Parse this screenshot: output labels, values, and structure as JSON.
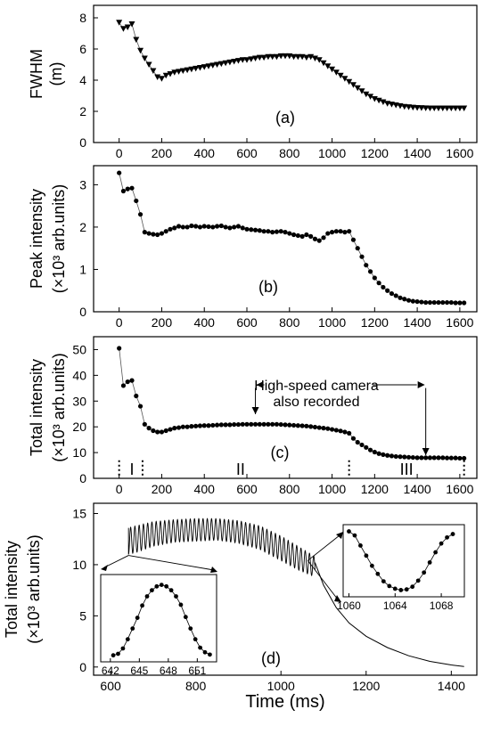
{
  "chart_data": [
    {
      "panel": "(a)",
      "type": "scatter",
      "ylabel": "FWHM\n(m)",
      "xlim": [
        -120,
        1680
      ],
      "ylim": [
        0,
        8.8
      ],
      "xticks": [
        0,
        200,
        400,
        600,
        800,
        1000,
        1200,
        1400,
        1600
      ],
      "yticks": [
        0,
        2,
        4,
        6,
        8
      ],
      "marker": "triangle-down",
      "series": [
        {
          "x": [
            0,
            20,
            40,
            60,
            80,
            100,
            120,
            140,
            160,
            180,
            200,
            220,
            240,
            260,
            280,
            300,
            320,
            340,
            360,
            380,
            400,
            420,
            440,
            460,
            480,
            500,
            520,
            540,
            560,
            580,
            600,
            620,
            640,
            660,
            680,
            700,
            720,
            740,
            760,
            780,
            800,
            820,
            840,
            860,
            880,
            900,
            920,
            940,
            960,
            980,
            1000,
            1020,
            1040,
            1060,
            1080,
            1100,
            1120,
            1140,
            1160,
            1180,
            1200,
            1220,
            1240,
            1260,
            1280,
            1300,
            1320,
            1340,
            1360,
            1380,
            1400,
            1420,
            1440,
            1460,
            1480,
            1500,
            1520,
            1540,
            1560,
            1580,
            1600,
            1620
          ],
          "y": [
            7.7,
            7.3,
            7.4,
            7.6,
            6.6,
            5.9,
            5.4,
            5.0,
            4.6,
            4.2,
            4.1,
            4.3,
            4.4,
            4.5,
            4.55,
            4.6,
            4.65,
            4.7,
            4.75,
            4.8,
            4.85,
            4.9,
            4.95,
            5.0,
            5.05,
            5.1,
            5.15,
            5.2,
            5.25,
            5.3,
            5.3,
            5.35,
            5.4,
            5.45,
            5.45,
            5.5,
            5.5,
            5.5,
            5.55,
            5.55,
            5.55,
            5.5,
            5.5,
            5.5,
            5.45,
            5.5,
            5.4,
            5.3,
            5.1,
            4.9,
            4.7,
            4.5,
            4.3,
            4.1,
            3.9,
            3.7,
            3.5,
            3.3,
            3.1,
            2.95,
            2.8,
            2.7,
            2.6,
            2.5,
            2.45,
            2.4,
            2.35,
            2.3,
            2.28,
            2.25,
            2.23,
            2.22,
            2.21,
            2.2,
            2.2,
            2.2,
            2.2,
            2.2,
            2.2,
            2.2,
            2.2,
            2.2
          ]
        }
      ]
    },
    {
      "panel": "(b)",
      "type": "scatter",
      "ylabel": "Peak intensity\n(×10³ arb.units)",
      "xlim": [
        -120,
        1680
      ],
      "ylim": [
        0,
        3.45
      ],
      "xticks": [
        0,
        200,
        400,
        600,
        800,
        1000,
        1200,
        1400,
        1600
      ],
      "yticks": [
        0,
        1,
        2,
        3
      ],
      "marker": "circle",
      "series": [
        {
          "x": [
            0,
            20,
            40,
            60,
            80,
            100,
            120,
            140,
            160,
            180,
            200,
            220,
            240,
            260,
            280,
            300,
            320,
            340,
            360,
            380,
            400,
            420,
            440,
            460,
            480,
            500,
            520,
            540,
            560,
            580,
            600,
            620,
            640,
            660,
            680,
            700,
            720,
            740,
            760,
            780,
            800,
            820,
            840,
            860,
            880,
            900,
            920,
            940,
            960,
            980,
            1000,
            1020,
            1040,
            1060,
            1080,
            1100,
            1120,
            1140,
            1160,
            1180,
            1200,
            1220,
            1240,
            1260,
            1280,
            1300,
            1320,
            1340,
            1360,
            1380,
            1400,
            1420,
            1440,
            1460,
            1480,
            1500,
            1520,
            1540,
            1560,
            1580,
            1600,
            1620
          ],
          "y": [
            3.28,
            2.85,
            2.9,
            2.92,
            2.62,
            2.3,
            1.88,
            1.85,
            1.83,
            1.82,
            1.85,
            1.9,
            1.95,
            1.98,
            2.02,
            2.0,
            2.0,
            2.03,
            2.02,
            2.0,
            2.02,
            2.01,
            2.0,
            2.02,
            2.03,
            2.0,
            1.98,
            2.0,
            2.02,
            1.98,
            1.95,
            1.94,
            1.93,
            1.92,
            1.9,
            1.9,
            1.88,
            1.89,
            1.9,
            1.88,
            1.85,
            1.82,
            1.8,
            1.78,
            1.82,
            1.78,
            1.72,
            1.68,
            1.75,
            1.85,
            1.88,
            1.9,
            1.9,
            1.88,
            1.9,
            1.7,
            1.5,
            1.3,
            1.1,
            0.95,
            0.8,
            0.68,
            0.58,
            0.5,
            0.43,
            0.38,
            0.33,
            0.3,
            0.27,
            0.25,
            0.24,
            0.23,
            0.22,
            0.22,
            0.22,
            0.22,
            0.22,
            0.22,
            0.22,
            0.21,
            0.21,
            0.21
          ]
        }
      ]
    },
    {
      "panel": "(c)",
      "type": "scatter",
      "ylabel": "Total intensity\n(×10³ arb.units)",
      "xlim": [
        -120,
        1680
      ],
      "ylim": [
        0,
        55
      ],
      "xticks": [
        0,
        200,
        400,
        600,
        800,
        1000,
        1200,
        1400,
        1600
      ],
      "yticks": [
        0,
        10,
        20,
        30,
        40,
        50
      ],
      "marker": "circle",
      "annotation": "High-speed camera\nalso recorded",
      "camera_range": [
        640,
        1440
      ],
      "region_labels": [
        {
          "label": "I",
          "x": 60
        },
        {
          "label": "II",
          "x": 570
        },
        {
          "label": "III",
          "x": 1350
        }
      ],
      "region_boundaries": [
        0,
        110,
        1080,
        1620
      ],
      "series": [
        {
          "x": [
            0,
            20,
            40,
            60,
            80,
            100,
            120,
            140,
            160,
            180,
            200,
            220,
            240,
            260,
            280,
            300,
            320,
            340,
            360,
            380,
            400,
            420,
            440,
            460,
            480,
            500,
            520,
            540,
            560,
            580,
            600,
            620,
            640,
            660,
            680,
            700,
            720,
            740,
            760,
            780,
            800,
            820,
            840,
            860,
            880,
            900,
            920,
            940,
            960,
            980,
            1000,
            1020,
            1040,
            1060,
            1080,
            1100,
            1120,
            1140,
            1160,
            1180,
            1200,
            1220,
            1240,
            1260,
            1280,
            1300,
            1320,
            1340,
            1360,
            1380,
            1400,
            1420,
            1440,
            1460,
            1480,
            1500,
            1520,
            1540,
            1560,
            1580,
            1600,
            1620
          ],
          "y": [
            50.5,
            36,
            37.5,
            38,
            32,
            28,
            21,
            19.5,
            18.5,
            18,
            18,
            18.5,
            19,
            19.5,
            19.7,
            20,
            20,
            20.2,
            20.3,
            20.4,
            20.5,
            20.5,
            20.6,
            20.7,
            20.8,
            20.8,
            20.8,
            20.9,
            20.9,
            21,
            21,
            21,
            21,
            21,
            21,
            21,
            21,
            21,
            20.9,
            20.8,
            20.7,
            20.6,
            20.5,
            20.4,
            20.3,
            20.1,
            19.9,
            19.7,
            19.5,
            19.3,
            19,
            18.7,
            18.4,
            18,
            17.5,
            15.5,
            14,
            13,
            12,
            11,
            10.2,
            9.6,
            9.2,
            8.9,
            8.7,
            8.5,
            8.4,
            8.3,
            8.2,
            8.1,
            8,
            8,
            8,
            8,
            8,
            8,
            8,
            7.9,
            7.9,
            7.9,
            7.8,
            7.8
          ]
        }
      ]
    },
    {
      "panel": "(d)",
      "type": "line",
      "xlabel": "Time (ms)",
      "ylabel": "Total intensity\n(×10³ arb.units)",
      "xlim": [
        560,
        1460
      ],
      "ylim": [
        -0.8,
        16
      ],
      "xticks": [
        600,
        800,
        1000,
        1200,
        1400
      ],
      "yticks": [
        0,
        5,
        10,
        15
      ],
      "oscillation": {
        "x_start": 642,
        "x_end": 1080,
        "period_ms": 10,
        "envelope": {
          "x": [
            642,
            660,
            700,
            750,
            800,
            850,
            900,
            950,
            1000,
            1040,
            1080
          ],
          "max": [
            13.6,
            13.8,
            14.2,
            14.4,
            14.5,
            14.5,
            14.3,
            13.8,
            12.8,
            11.8,
            10.8
          ],
          "min": [
            11.0,
            11.2,
            11.8,
            12.2,
            12.3,
            12.4,
            12.1,
            11.5,
            10.4,
            9.5,
            8.8
          ]
        }
      },
      "decay": {
        "x": [
          1080,
          1100,
          1130,
          1160,
          1200,
          1250,
          1300,
          1350,
          1400,
          1430
        ],
        "y": [
          10.2,
          8.0,
          5.8,
          4.3,
          3.0,
          1.9,
          1.1,
          0.55,
          0.2,
          0.05
        ]
      },
      "insets": [
        {
          "name": "left",
          "xlim": [
            641,
            653
          ],
          "xticks": [
            642,
            645,
            648,
            651
          ],
          "x": [
            642.3,
            642.8,
            643.3,
            643.8,
            644.3,
            644.8,
            645.3,
            645.8,
            646.3,
            646.8,
            647.3,
            647.8,
            648.3,
            648.8,
            649.3,
            649.8,
            650.3,
            650.8,
            651.3,
            651.8,
            652.3
          ],
          "y": [
            0.3,
            0.5,
            1.2,
            2.4,
            3.8,
            5.2,
            6.8,
            8.0,
            8.8,
            9.3,
            9.5,
            9.3,
            8.8,
            8.0,
            6.9,
            5.3,
            3.8,
            2.4,
            1.3,
            0.7,
            0.4
          ]
        },
        {
          "name": "right",
          "xlim": [
            1059.5,
            1070
          ],
          "xticks": [
            1060,
            1064,
            1068
          ],
          "x": [
            1060,
            1060.5,
            1061,
            1061.5,
            1062,
            1062.5,
            1063,
            1063.5,
            1064,
            1064.5,
            1065,
            1065.5,
            1066,
            1066.5,
            1067,
            1067.5,
            1068,
            1068.5,
            1069
          ],
          "y": [
            14.6,
            14.0,
            12.5,
            11.0,
            9.5,
            8.3,
            7.2,
            6.5,
            6.1,
            5.9,
            6.0,
            6.4,
            7.3,
            8.5,
            10.0,
            11.5,
            12.8,
            13.7,
            14.2
          ]
        }
      ]
    }
  ],
  "panels": {
    "a": {
      "label": "(a)",
      "ylabel_lines": [
        "FWHM",
        "(m)"
      ]
    },
    "b": {
      "label": "(b)",
      "ylabel_lines": [
        "Peak intensity",
        "(×10³ arb.units)"
      ]
    },
    "c": {
      "label": "(c)",
      "ylabel_lines": [
        "Total intensity",
        "(×10³ arb.units)"
      ],
      "camera_text_lines": [
        "High-speed camera",
        "also recorded"
      ]
    },
    "d": {
      "label": "(d)",
      "ylabel_lines": [
        "Total intensity",
        "(×10³ arb.units)"
      ],
      "xlabel": "Time (ms)"
    }
  }
}
